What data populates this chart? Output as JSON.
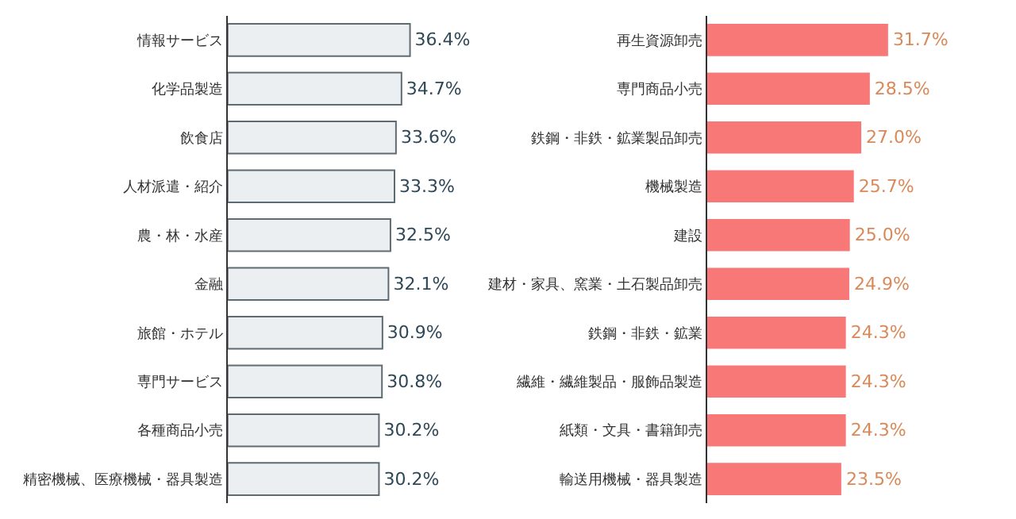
{
  "chart_data": [
    {
      "type": "bar",
      "orientation": "horizontal",
      "categories": [
        "情報サービス",
        "化学品製造",
        "飲食店",
        "人材派遣・紹介",
        "農・林・水産",
        "金融",
        "旅館・ホテル",
        "専門サービス",
        "各種商品小売",
        "精密機械、医療機械・器具製造"
      ],
      "values": [
        36.4,
        34.7,
        33.6,
        33.3,
        32.5,
        32.1,
        30.9,
        30.8,
        30.2,
        30.2
      ],
      "value_labels": [
        "36.4%",
        "34.7%",
        "33.6%",
        "33.3%",
        "32.5%",
        "32.1%",
        "30.9%",
        "30.8%",
        "30.2%",
        "30.2%"
      ],
      "color": "#eceff1",
      "tick_labels": "y"
    },
    {
      "type": "bar",
      "orientation": "horizontal",
      "categories": [
        "再生資源卸売",
        "専門商品小売",
        "鉄鋼・非鉄・鉱業製品卸売",
        "機械製造",
        "建設",
        "建材・家具、窯業・土石製品卸売",
        "鉄鋼・非鉄・鉱業",
        "繊維・繊維製品・服飾品製造",
        "紙類・文具・書籍卸売",
        "輸送用機械・器具製造"
      ],
      "values": [
        31.7,
        28.5,
        27.0,
        25.7,
        25.0,
        24.9,
        24.3,
        24.3,
        24.3,
        23.5
      ],
      "value_labels": [
        "31.7%",
        "28.5%",
        "27.0%",
        "25.7%",
        "25.0%",
        "24.9%",
        "24.3%",
        "24.3%",
        "24.3%",
        "23.5%"
      ],
      "color": "#f87878",
      "tick_labels": "y"
    }
  ]
}
